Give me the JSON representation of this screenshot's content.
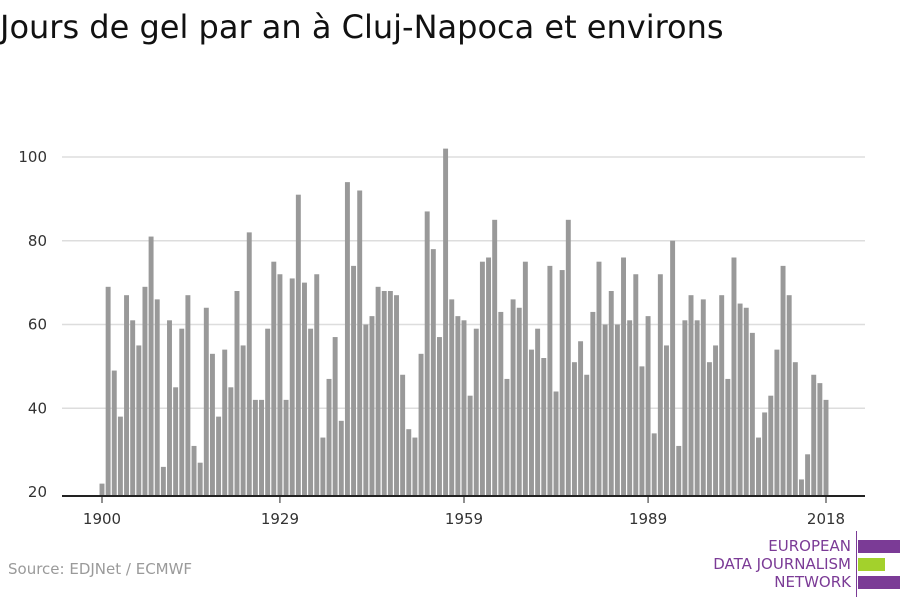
{
  "title": "Jours de gel par an à Cluj-Napoca et environs",
  "source": "Source: EDJNet / ECMWF",
  "logo": {
    "lines": [
      "EUROPEAN",
      "DATA JOURNALISM",
      "NETWORK"
    ],
    "colors": {
      "purple": "#7b3b96",
      "green": "#a3d12c"
    }
  },
  "colors": {
    "bar": "#999999",
    "grid": "#dddddd",
    "axis": "#222222",
    "text": "#333333"
  },
  "chart_data": {
    "type": "bar",
    "title": "Jours de gel par an à Cluj-Napoca et environs",
    "xlabel": "",
    "ylabel": "",
    "x_range": [
      1900,
      2018
    ],
    "ylim": [
      20,
      102
    ],
    "yticks": [
      20,
      40,
      60,
      80,
      100
    ],
    "xticks": [
      1900,
      1929,
      1959,
      1989,
      2018
    ],
    "grid": true,
    "x": [
      1900,
      1901,
      1902,
      1903,
      1904,
      1905,
      1906,
      1907,
      1908,
      1909,
      1910,
      1911,
      1912,
      1913,
      1914,
      1915,
      1916,
      1917,
      1918,
      1919,
      1920,
      1921,
      1922,
      1923,
      1924,
      1925,
      1926,
      1927,
      1928,
      1929,
      1930,
      1931,
      1932,
      1933,
      1934,
      1935,
      1936,
      1937,
      1938,
      1939,
      1940,
      1941,
      1942,
      1943,
      1944,
      1945,
      1946,
      1947,
      1948,
      1949,
      1950,
      1951,
      1952,
      1953,
      1954,
      1955,
      1956,
      1957,
      1958,
      1959,
      1960,
      1961,
      1962,
      1963,
      1964,
      1965,
      1966,
      1967,
      1968,
      1969,
      1970,
      1971,
      1972,
      1973,
      1974,
      1975,
      1976,
      1977,
      1978,
      1979,
      1980,
      1981,
      1982,
      1983,
      1984,
      1985,
      1986,
      1987,
      1988,
      1989,
      1990,
      1991,
      1992,
      1993,
      1994,
      1995,
      1996,
      1997,
      1998,
      1999,
      2000,
      2001,
      2002,
      2003,
      2004,
      2005,
      2006,
      2007,
      2008,
      2009,
      2010,
      2011,
      2012,
      2013,
      2014,
      2015,
      2016,
      2017,
      2018
    ],
    "values": [
      22,
      69,
      49,
      38,
      67,
      61,
      55,
      69,
      81,
      66,
      26,
      61,
      45,
      59,
      67,
      31,
      27,
      64,
      53,
      38,
      54,
      45,
      68,
      55,
      82,
      42,
      42,
      59,
      75,
      72,
      42,
      71,
      91,
      70,
      59,
      72,
      33,
      47,
      57,
      37,
      94,
      74,
      92,
      60,
      62,
      69,
      68,
      68,
      67,
      48,
      35,
      33,
      53,
      87,
      78,
      57,
      102,
      66,
      62,
      61,
      43,
      59,
      75,
      76,
      85,
      63,
      47,
      66,
      64,
      75,
      54,
      59,
      52,
      74,
      44,
      73,
      85,
      51,
      56,
      48,
      63,
      75,
      60,
      68,
      60,
      76,
      61,
      72,
      50,
      62,
      34,
      72,
      55,
      80,
      31,
      61,
      67,
      61,
      66,
      51,
      55,
      67,
      47,
      76,
      65,
      64,
      58,
      33,
      39,
      43,
      54,
      74,
      67,
      51,
      23,
      29,
      48,
      46,
      42
    ]
  }
}
